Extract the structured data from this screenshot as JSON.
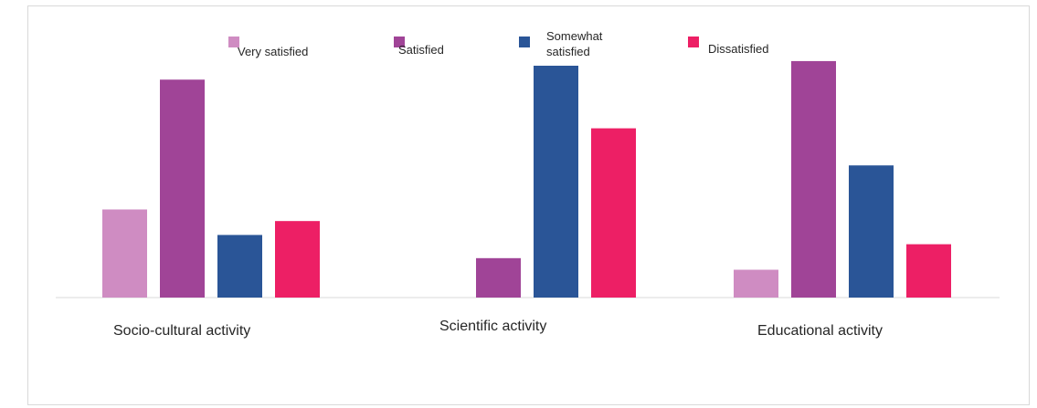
{
  "chart_data": {
    "type": "bar",
    "title": "",
    "xlabel": "",
    "ylabel": "",
    "ylim": [
      0,
      100
    ],
    "grid": false,
    "legend_position": "top",
    "categories": [
      "Socio-cultural activity",
      "Scientific activity",
      "Educational activity"
    ],
    "series": [
      {
        "name": "Very satisfied",
        "color": "#cf8cc2",
        "values": [
          38,
          0,
          12
        ]
      },
      {
        "name": "Satisfied",
        "color": "#a04497",
        "values": [
          94,
          17,
          102
        ]
      },
      {
        "name": "Somewhat satisfied",
        "color": "#2a5597",
        "values": [
          27,
          100,
          57
        ]
      },
      {
        "name": "Dissatisfied",
        "color": "#ed1f65",
        "values": [
          33,
          73,
          23
        ]
      }
    ]
  }
}
